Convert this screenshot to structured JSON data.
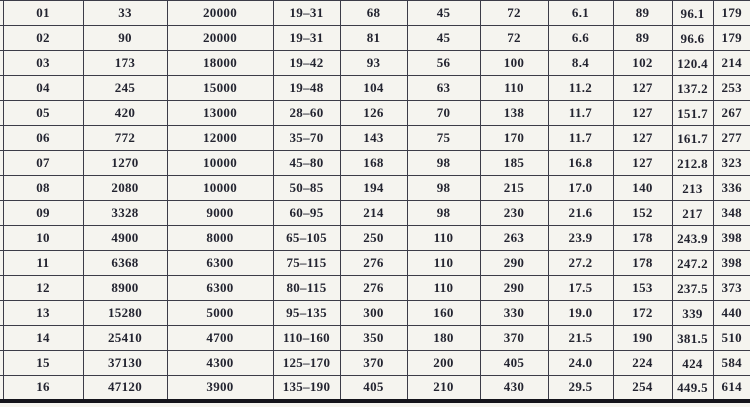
{
  "table": {
    "rows": [
      [
        "01",
        "33",
        "20000",
        "19–31",
        "68",
        "45",
        "72",
        "6.1",
        "89",
        "96.1",
        "179"
      ],
      [
        "02",
        "90",
        "20000",
        "19–31",
        "81",
        "45",
        "72",
        "6.6",
        "89",
        "96.6",
        "179"
      ],
      [
        "03",
        "173",
        "18000",
        "19–42",
        "93",
        "56",
        "100",
        "8.4",
        "102",
        "120.4",
        "214"
      ],
      [
        "04",
        "245",
        "15000",
        "19–48",
        "104",
        "63",
        "110",
        "11.2",
        "127",
        "137.2",
        "253"
      ],
      [
        "05",
        "420",
        "13000",
        "28–60",
        "126",
        "70",
        "138",
        "11.7",
        "127",
        "151.7",
        "267"
      ],
      [
        "06",
        "772",
        "12000",
        "35–70",
        "143",
        "75",
        "170",
        "11.7",
        "127",
        "161.7",
        "277"
      ],
      [
        "07",
        "1270",
        "10000",
        "45–80",
        "168",
        "98",
        "185",
        "16.8",
        "127",
        "212.8",
        "323"
      ],
      [
        "08",
        "2080",
        "10000",
        "50–85",
        "194",
        "98",
        "215",
        "17.0",
        "140",
        "213",
        "336"
      ],
      [
        "09",
        "3328",
        "9000",
        "60–95",
        "214",
        "98",
        "230",
        "21.6",
        "152",
        "217",
        "348"
      ],
      [
        "10",
        "4900",
        "8000",
        "65–105",
        "250",
        "110",
        "263",
        "23.9",
        "178",
        "243.9",
        "398"
      ],
      [
        "11",
        "6368",
        "6300",
        "75–115",
        "276",
        "110",
        "290",
        "27.2",
        "178",
        "247.2",
        "398"
      ],
      [
        "12",
        "8900",
        "6300",
        "80–115",
        "276",
        "110",
        "290",
        "17.5",
        "153",
        "237.5",
        "373"
      ],
      [
        "13",
        "15280",
        "5000",
        "95–135",
        "300",
        "160",
        "330",
        "19.0",
        "172",
        "339",
        "440"
      ],
      [
        "14",
        "25410",
        "4700",
        "110–160",
        "350",
        "180",
        "370",
        "21.5",
        "190",
        "381.5",
        "510"
      ],
      [
        "15",
        "37130",
        "4300",
        "125–170",
        "370",
        "200",
        "405",
        "24.0",
        "224",
        "424",
        "584"
      ],
      [
        "16",
        "47120",
        "3900",
        "135–190",
        "405",
        "210",
        "430",
        "29.5",
        "254",
        "449.5",
        "614"
      ]
    ],
    "paper_color": "#f5f4ef",
    "line_color": "#3c3c48",
    "ink_color": "#232430",
    "bottom_rule_color": "#14141b"
  }
}
